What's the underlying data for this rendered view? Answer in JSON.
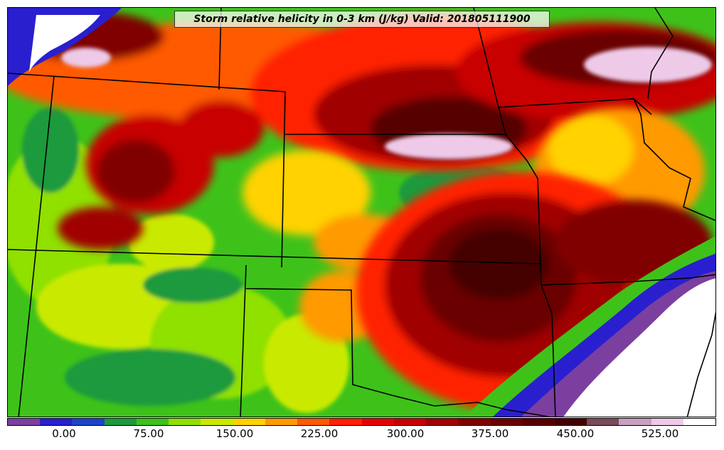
{
  "title": "Storm relative helicity in 0-3 km (J/kg) Valid: 201805111900",
  "colorbar": {
    "colors": [
      "#7b3fa0",
      "#2a1fcf",
      "#1e44c8",
      "#1c9a3c",
      "#3ec21a",
      "#90e000",
      "#c9ea00",
      "#ffd200",
      "#ff9a00",
      "#ff5a00",
      "#ff2000",
      "#e80000",
      "#c80000",
      "#a00000",
      "#800000",
      "#6a0000",
      "#560000",
      "#440000",
      "#7a4a5a",
      "#c8a0c0",
      "#eecae8",
      "#ffffff"
    ],
    "ticks": [
      "0.00",
      "75.00",
      "150.00",
      "225.00",
      "300.00",
      "375.00",
      "450.00",
      "525.00"
    ]
  },
  "map": {
    "background_color": "#3ec21a",
    "boundary_color": "#000000"
  }
}
